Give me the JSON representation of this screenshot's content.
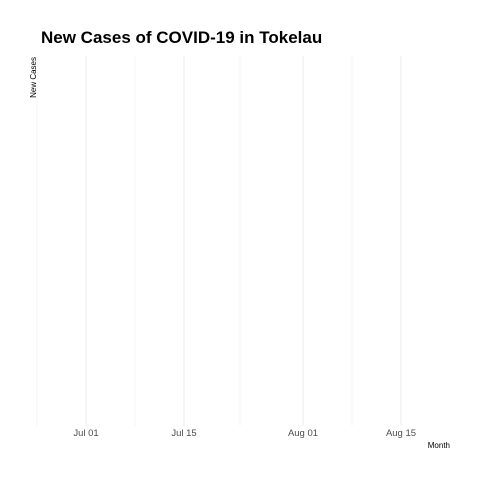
{
  "chart_data": {
    "type": "line",
    "title": "New Cases of COVID-19 in Tokelau",
    "xlabel": "Month",
    "ylabel": "New Cases",
    "x_axis_type": "date",
    "xlim": [
      "2020-06-25",
      "2020-08-22"
    ],
    "x_ticks": [
      {
        "date": "2020-07-01",
        "label": "Jul 01"
      },
      {
        "date": "2020-07-15",
        "label": "Jul 15"
      },
      {
        "date": "2020-08-01",
        "label": "Aug 01"
      },
      {
        "date": "2020-08-15",
        "label": "Aug 15"
      }
    ],
    "x_minor_gridlines": [
      "2020-06-24",
      "2020-07-08",
      "2020-07-23",
      "2020-08-08"
    ],
    "y_ticks": [],
    "series": [],
    "grid": true,
    "legend": "none"
  }
}
